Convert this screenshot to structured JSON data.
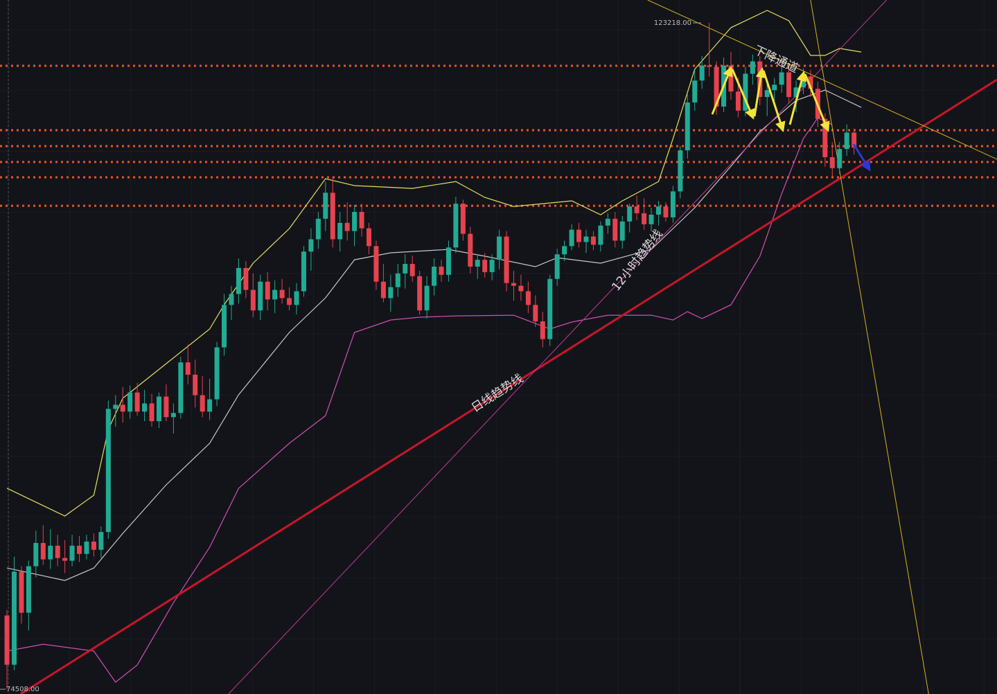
{
  "chart_data": {
    "type": "candlestick",
    "xlim": [
      -0.96,
      136.75
    ],
    "ylim": [
      74160,
      124890
    ],
    "up_color": "#22ab94",
    "down_color": "#e5434f",
    "ohlc": [
      [
        79900,
        80300,
        74508,
        76300
      ],
      [
        76300,
        84200,
        75900,
        83100
      ],
      [
        83100,
        83500,
        79300,
        80100
      ],
      [
        80100,
        83900,
        78800,
        83500
      ],
      [
        83500,
        86100,
        82700,
        85200
      ],
      [
        85200,
        86500,
        83600,
        84000
      ],
      [
        84000,
        86200,
        83300,
        85000
      ],
      [
        85000,
        85800,
        83500,
        84100
      ],
      [
        84100,
        85400,
        83000,
        83900
      ],
      [
        83900,
        85800,
        83500,
        85000
      ],
      [
        85000,
        85700,
        83800,
        84400
      ],
      [
        84400,
        85800,
        84000,
        85300
      ],
      [
        85300,
        85900,
        84200,
        84700
      ],
      [
        84700,
        86400,
        84100,
        86000
      ],
      [
        86000,
        95600,
        85500,
        95000
      ],
      [
        95000,
        96000,
        93700,
        95300
      ],
      [
        95300,
        96600,
        94000,
        94800
      ],
      [
        94800,
        96700,
        94300,
        96200
      ],
      [
        96200,
        96900,
        94500,
        94800
      ],
      [
        94800,
        96400,
        94100,
        95400
      ],
      [
        95400,
        96100,
        93700,
        94100
      ],
      [
        94100,
        96200,
        93600,
        95900
      ],
      [
        95900,
        96800,
        94100,
        94400
      ],
      [
        94400,
        95400,
        93200,
        94700
      ],
      [
        94700,
        98800,
        94300,
        98400
      ],
      [
        98400,
        99700,
        96800,
        97500
      ],
      [
        97500,
        98600,
        95100,
        96000
      ],
      [
        96000,
        97400,
        94400,
        94800
      ],
      [
        94800,
        97200,
        94200,
        95700
      ],
      [
        95700,
        99900,
        95200,
        99500
      ],
      [
        99500,
        103400,
        98900,
        102600
      ],
      [
        102600,
        104000,
        101500,
        103400
      ],
      [
        103400,
        106000,
        102700,
        105300
      ],
      [
        105300,
        105800,
        103100,
        103700
      ],
      [
        103700,
        104900,
        101700,
        102200
      ],
      [
        102200,
        104800,
        101500,
        104300
      ],
      [
        104300,
        105000,
        102200,
        103000
      ],
      [
        103000,
        104400,
        102000,
        103700
      ],
      [
        103700,
        104500,
        102700,
        103100
      ],
      [
        103100,
        103900,
        102200,
        102600
      ],
      [
        102600,
        104200,
        101900,
        103600
      ],
      [
        103600,
        106900,
        103200,
        106500
      ],
      [
        106500,
        108200,
        105100,
        107400
      ],
      [
        107400,
        109400,
        106700,
        108900
      ],
      [
        108900,
        111600,
        108000,
        110800
      ],
      [
        110800,
        112000,
        106800,
        107400
      ],
      [
        107400,
        109400,
        106500,
        108600
      ],
      [
        108600,
        110100,
        107300,
        108000
      ],
      [
        108000,
        109900,
        106900,
        109400
      ],
      [
        109400,
        110000,
        107600,
        108200
      ],
      [
        108200,
        108600,
        106300,
        106900
      ],
      [
        106900,
        107300,
        103700,
        104300
      ],
      [
        104300,
        105600,
        102800,
        103100
      ],
      [
        103100,
        104800,
        102100,
        103900
      ],
      [
        103900,
        105600,
        103200,
        104900
      ],
      [
        104900,
        106300,
        103800,
        105600
      ],
      [
        105600,
        106200,
        104300,
        104700
      ],
      [
        104700,
        105100,
        101900,
        102200
      ],
      [
        102200,
        104700,
        101600,
        104000
      ],
      [
        104000,
        106000,
        103300,
        105400
      ],
      [
        105400,
        105900,
        104300,
        104800
      ],
      [
        104800,
        107300,
        104300,
        106800
      ],
      [
        106800,
        110500,
        106400,
        110000
      ],
      [
        110000,
        110300,
        107300,
        107800
      ],
      [
        107800,
        108300,
        104900,
        105400
      ],
      [
        105400,
        106300,
        104500,
        105900
      ],
      [
        105900,
        106400,
        104600,
        105000
      ],
      [
        105000,
        106300,
        104400,
        105900
      ],
      [
        105900,
        108100,
        105200,
        107600
      ],
      [
        107600,
        108000,
        103600,
        104200
      ],
      [
        104200,
        105100,
        102900,
        104000
      ],
      [
        104000,
        104800,
        102900,
        103600
      ],
      [
        103600,
        104300,
        102000,
        102600
      ],
      [
        102600,
        103300,
        101000,
        101400
      ],
      [
        101400,
        102100,
        99500,
        100100
      ],
      [
        100100,
        104800,
        99600,
        104500
      ],
      [
        104500,
        106700,
        104000,
        106300
      ],
      [
        106300,
        107300,
        105800,
        106900
      ],
      [
        106900,
        108500,
        106600,
        108100
      ],
      [
        108100,
        108600,
        106800,
        107200
      ],
      [
        107200,
        108100,
        106400,
        107600
      ],
      [
        107600,
        108000,
        106600,
        107000
      ],
      [
        107000,
        108700,
        106500,
        108400
      ],
      [
        108400,
        109300,
        107800,
        108900
      ],
      [
        108900,
        109400,
        106800,
        107300
      ],
      [
        107300,
        109100,
        106700,
        108700
      ],
      [
        108700,
        110000,
        107900,
        109800
      ],
      [
        109800,
        110600,
        108800,
        109300
      ],
      [
        109300,
        110400,
        108100,
        108500
      ],
      [
        108500,
        109700,
        108000,
        109200
      ],
      [
        109200,
        110200,
        108400,
        109800
      ],
      [
        109800,
        110100,
        108700,
        109000
      ],
      [
        109000,
        111300,
        108600,
        110900
      ],
      [
        110900,
        114200,
        110400,
        113900
      ],
      [
        113900,
        118000,
        113300,
        117400
      ],
      [
        117400,
        119800,
        116800,
        119000
      ],
      [
        119000,
        120800,
        118400,
        120100
      ],
      [
        120100,
        123218,
        119300,
        120000
      ],
      [
        120000,
        120400,
        116500,
        117100
      ],
      [
        117100,
        120700,
        116700,
        120100
      ],
      [
        120100,
        121100,
        117600,
        118200
      ],
      [
        118200,
        119200,
        116300,
        116800
      ],
      [
        116800,
        120000,
        116400,
        119500
      ],
      [
        119500,
        120900,
        118700,
        120400
      ],
      [
        120400,
        120800,
        117200,
        117800
      ],
      [
        117800,
        118900,
        116400,
        118300
      ],
      [
        118300,
        119200,
        117500,
        118700
      ],
      [
        118700,
        120100,
        118100,
        119600
      ],
      [
        119600,
        120000,
        117300,
        117800
      ],
      [
        117800,
        119000,
        116700,
        118500
      ],
      [
        118500,
        119900,
        118000,
        119300
      ],
      [
        119300,
        119800,
        117800,
        118400
      ],
      [
        118400,
        118900,
        115600,
        116200
      ],
      [
        116200,
        116600,
        112700,
        113400
      ],
      [
        113400,
        114500,
        111900,
        112600
      ],
      [
        112600,
        114500,
        112200,
        114000
      ],
      [
        114000,
        115800,
        113500,
        115200
      ],
      [
        115200,
        115500,
        113600,
        114100
      ]
    ],
    "bands": [
      {
        "color": "#e6e05a",
        "x": [
          0,
          8,
          12,
          14,
          16,
          22,
          28,
          30,
          34,
          39,
          44,
          48,
          56,
          62,
          66,
          70,
          78,
          82,
          85,
          90,
          92,
          95,
          100,
          105,
          108,
          111,
          113,
          115,
          118
        ],
        "values": [
          89200,
          87170,
          88690,
          93500,
          95780,
          98310,
          100840,
          102610,
          105650,
          108180,
          111830,
          111320,
          111120,
          111620,
          110460,
          109800,
          110210,
          109190,
          110210,
          111620,
          114760,
          119830,
          122870,
          124130,
          123370,
          120840,
          120840,
          121350,
          121090
        ]
      },
      {
        "color": "#c8c8c8",
        "x": [
          0,
          8,
          12,
          16,
          22,
          28,
          32,
          39,
          44,
          48,
          53,
          61,
          66,
          73,
          76,
          82,
          89,
          92,
          95,
          100,
          104,
          109,
          113,
          115,
          118
        ],
        "values": [
          83370,
          82460,
          83370,
          85900,
          89450,
          92490,
          96030,
          100590,
          103120,
          105900,
          106410,
          106660,
          106160,
          105400,
          106050,
          105650,
          106660,
          108180,
          109700,
          112740,
          115270,
          117550,
          118310,
          117800,
          117040
        ]
      },
      {
        "color": "#d34fb4",
        "x": [
          0,
          5,
          12,
          15,
          18,
          23,
          28,
          32,
          39,
          44,
          48,
          53,
          57,
          62,
          70,
          75,
          78,
          83,
          89,
          92,
          94,
          96,
          100,
          104,
          107,
          110,
          112,
          114
        ],
        "values": [
          77300,
          77800,
          77300,
          75020,
          76280,
          80840,
          84890,
          89190,
          92490,
          94510,
          100590,
          101500,
          101700,
          101800,
          101850,
          100840,
          101350,
          101850,
          101850,
          101500,
          102110,
          101600,
          102610,
          106160,
          110710,
          114760,
          116280,
          115780
        ]
      }
    ],
    "trendlines": [
      {
        "color": "#c8162a",
        "width": 3,
        "x": [
          1.9,
          136.75
        ],
        "values": [
          74160,
          119070
        ]
      },
      {
        "color": "#c0399a",
        "width": 1,
        "x": [
          30.6,
          121.5
        ],
        "values": [
          74160,
          124890
        ]
      },
      {
        "color": "#d9b020",
        "width": 1,
        "x": [
          88.5,
          136.75
        ],
        "values": [
          124890,
          113250
        ]
      },
      {
        "color": "#d9b020",
        "width": 1,
        "x": [
          111,
          127.3
        ],
        "values": [
          124890,
          74160
        ]
      }
    ],
    "levels": [
      120080,
      115370,
      114210,
      113050,
      111930,
      109850
    ],
    "level_color": "#e8542c",
    "price_labels": [
      {
        "value": 123218,
        "label": "123218.00"
      },
      {
        "value": 74508,
        "label": "74508.00"
      }
    ],
    "annotations": [
      "下降通道",
      "12小时趋势线",
      "日线趋势线"
    ]
  }
}
